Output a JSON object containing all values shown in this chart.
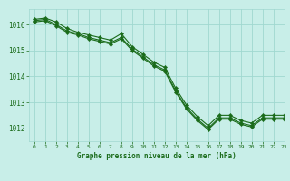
{
  "title": "Graphe pression niveau de la mer (hPa)",
  "background_color": "#c8eee8",
  "grid_color": "#a0d8d0",
  "line_color": "#1a6b1a",
  "marker_color": "#1a6b1a",
  "xlim": [
    -0.5,
    23
  ],
  "ylim": [
    1011.5,
    1016.6
  ],
  "yticks": [
    1012,
    1013,
    1014,
    1015,
    1016
  ],
  "xticks": [
    0,
    1,
    2,
    3,
    4,
    5,
    6,
    7,
    8,
    9,
    10,
    11,
    12,
    13,
    14,
    15,
    16,
    17,
    18,
    19,
    20,
    21,
    22,
    23
  ],
  "series": [
    [
      1016.2,
      1016.25,
      1016.1,
      1015.85,
      1015.7,
      1015.6,
      1015.5,
      1015.4,
      1015.65,
      1015.15,
      1014.85,
      1014.55,
      1014.35,
      1013.55,
      1012.9,
      1012.45,
      1012.1,
      1012.5,
      1012.5,
      1012.3,
      1012.2,
      1012.5,
      1012.5,
      1012.5
    ],
    [
      1016.15,
      1016.2,
      1016.0,
      1015.75,
      1015.65,
      1015.5,
      1015.4,
      1015.3,
      1015.5,
      1015.05,
      1014.75,
      1014.45,
      1014.25,
      1013.45,
      1012.8,
      1012.35,
      1012.0,
      1012.4,
      1012.4,
      1012.2,
      1012.1,
      1012.4,
      1012.4,
      1012.4
    ],
    [
      1016.1,
      1016.15,
      1015.95,
      1015.7,
      1015.6,
      1015.45,
      1015.35,
      1015.25,
      1015.45,
      1015.0,
      1014.7,
      1014.4,
      1014.2,
      1013.4,
      1012.75,
      1012.3,
      1011.95,
      1012.35,
      1012.35,
      1012.15,
      1012.05,
      1012.35,
      1012.35,
      1012.35
    ]
  ]
}
